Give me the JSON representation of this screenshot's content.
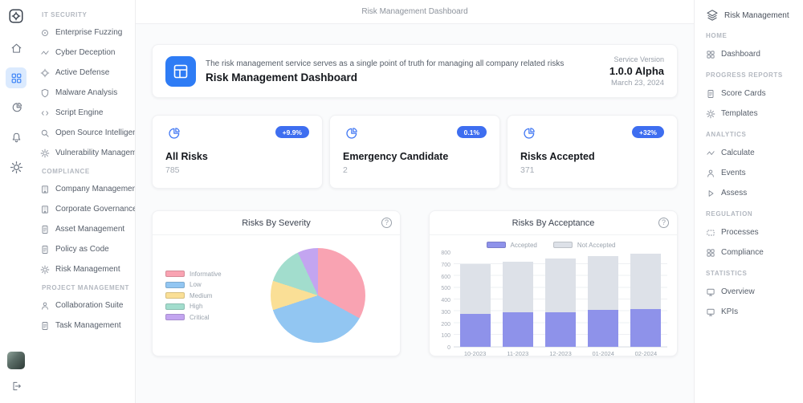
{
  "header": {
    "title": "Risk Management Dashboard"
  },
  "icons": {
    "help_glyph": "?"
  },
  "colors": {
    "accent": "#3b82f6",
    "badge": "#3e6ef0",
    "banner_icon_bg": "#2e7cf5"
  },
  "sidebar_left": {
    "entries": [
      {
        "type": "section",
        "label": "IT SECURITY"
      },
      {
        "type": "item",
        "label": "Enterprise Fuzzing",
        "icon": "enterprise-fuzzing-icon",
        "sym": "sym-target"
      },
      {
        "type": "item",
        "label": "Cyber Deception",
        "icon": "cyber-deception-icon",
        "sym": "sym-wave"
      },
      {
        "type": "item",
        "label": "Active Defense",
        "icon": "active-defense-icon",
        "sym": "sym-crosshair"
      },
      {
        "type": "item",
        "label": "Malware Analysis",
        "icon": "malware-analysis-icon",
        "sym": "sym-shield"
      },
      {
        "type": "item",
        "label": "Script Engine",
        "icon": "script-engine-icon",
        "sym": "sym-code"
      },
      {
        "type": "item",
        "label": "Open Source Intelligence",
        "icon": "open-source-intelligence-icon",
        "sym": "sym-search"
      },
      {
        "type": "item",
        "label": "Vulnerability Management",
        "icon": "vulnerability-management-icon",
        "sym": "sym-gear-sm"
      },
      {
        "type": "section",
        "label": "COMPLIANCE"
      },
      {
        "type": "item",
        "label": "Company Management",
        "icon": "company-management-icon",
        "sym": "sym-building"
      },
      {
        "type": "item",
        "label": "Corporate Governance",
        "icon": "corporate-governance-icon",
        "sym": "sym-building"
      },
      {
        "type": "item",
        "label": "Asset Management",
        "icon": "asset-management-icon",
        "sym": "sym-doc"
      },
      {
        "type": "item",
        "label": "Policy as Code",
        "icon": "policy-as-code-icon",
        "sym": "sym-doc"
      },
      {
        "type": "item",
        "label": "Risk Management",
        "icon": "risk-management-icon",
        "sym": "sym-gear-sm"
      },
      {
        "type": "section",
        "label": "PROJECT MANAGEMENT"
      },
      {
        "type": "item",
        "label": "Collaboration Suite",
        "icon": "collaboration-suite-icon",
        "sym": "sym-person"
      },
      {
        "type": "item",
        "label": "Task Management",
        "icon": "task-management-icon",
        "sym": "sym-doc"
      }
    ]
  },
  "sidebar_right": {
    "brand": "Risk Management",
    "entries": [
      {
        "type": "section",
        "label": "HOME"
      },
      {
        "type": "item",
        "label": "Dashboard",
        "icon": "dashboard-icon",
        "sym": "sym-grid4"
      },
      {
        "type": "section",
        "label": "PROGRESS REPORTS"
      },
      {
        "type": "item",
        "label": "Score Cards",
        "icon": "score-cards-icon",
        "sym": "sym-doc"
      },
      {
        "type": "item",
        "label": "Templates",
        "icon": "templates-icon",
        "sym": "sym-gear-sm"
      },
      {
        "type": "section",
        "label": "ANALYTICS"
      },
      {
        "type": "item",
        "label": "Calculate",
        "icon": "calculate-icon",
        "sym": "sym-wave"
      },
      {
        "type": "item",
        "label": "Events",
        "icon": "events-icon",
        "sym": "sym-person"
      },
      {
        "type": "item",
        "label": "Assess",
        "icon": "assess-icon",
        "sym": "sym-play"
      },
      {
        "type": "section",
        "label": "REGULATION"
      },
      {
        "type": "item",
        "label": "Processes",
        "icon": "processes-icon",
        "sym": "sym-dashed"
      },
      {
        "type": "item",
        "label": "Compliance",
        "icon": "compliance-icon",
        "sym": "sym-grid4"
      },
      {
        "type": "section",
        "label": "STATISTICS"
      },
      {
        "type": "item",
        "label": "Overview",
        "icon": "overview-icon",
        "sym": "sym-monitor"
      },
      {
        "type": "item",
        "label": "KPIs",
        "icon": "kpis-icon",
        "sym": "sym-monitor"
      }
    ]
  },
  "banner": {
    "description": "The risk management service serves as a single point of truth for managing all company related risks",
    "title": "Risk Management Dashboard",
    "version_label": "Service Version",
    "version": "1.0.0 Alpha",
    "date": "March 23, 2024"
  },
  "stats": [
    {
      "type": "item",
      "title": "All Risks",
      "value": "785",
      "badge": "+9.9%"
    },
    {
      "type": "item",
      "title": "Emergency Candidate",
      "value": "2",
      "badge": "0.1%"
    },
    {
      "type": "item",
      "title": "Risks Accepted",
      "value": "371",
      "badge": "+32%"
    }
  ],
  "chart_data": [
    {
      "type": "pie",
      "title": "Risks By Severity",
      "labels": [
        "Informative",
        "Low",
        "Medium",
        "High",
        "Critical"
      ],
      "values": [
        33,
        37,
        10,
        13,
        7
      ],
      "colors": [
        "#f9a3b2",
        "#92c6f2",
        "#fadf96",
        "#a2ddcd",
        "#c3a5f0"
      ],
      "legend_position": "left"
    },
    {
      "type": "bar",
      "stacked": true,
      "title": "Risks By Acceptance",
      "categories": [
        "10-2023",
        "11-2023",
        "12-2023",
        "01-2024",
        "02-2024"
      ],
      "series": [
        {
          "name": "Accepted",
          "color": "#8e92ea",
          "values": [
            275,
            295,
            295,
            310,
            320
          ]
        },
        {
          "name": "Not Accepted",
          "color": "#dde1e8",
          "values": [
            425,
            425,
            450,
            455,
            470
          ]
        }
      ],
      "ylim": [
        0,
        800
      ],
      "ytick_step": 100,
      "grid": true,
      "legend_position": "top"
    }
  ]
}
